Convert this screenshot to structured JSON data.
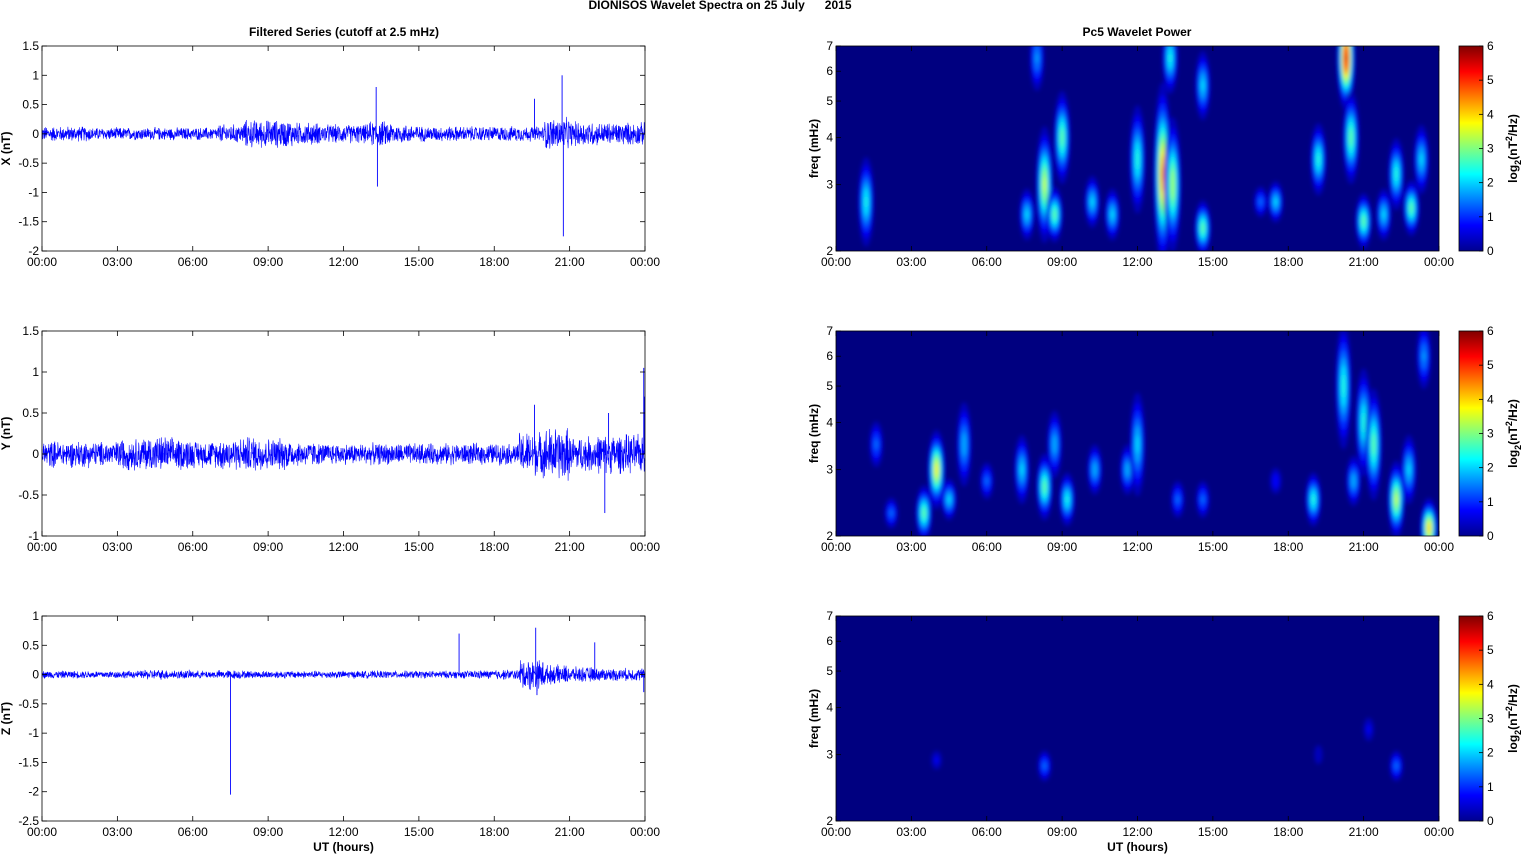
{
  "chart_data": {
    "title": "DIONISOS Wavelet Spectra on 25 July      2015",
    "left_title": "Filtered Series (cutoff at 2.5 mHz)",
    "right_title": "Pc5 Wavelet Power",
    "xlabel": "UT (hours)",
    "x_ticks": [
      "00:00",
      "03:00",
      "06:00",
      "09:00",
      "12:00",
      "15:00",
      "18:00",
      "21:00",
      "00:00"
    ],
    "x_range_hours": [
      0,
      24
    ],
    "freq_label": "freq (mHz)",
    "freq_ticks": [
      2,
      3,
      4,
      5,
      6,
      7
    ],
    "freq_range": [
      2,
      7
    ],
    "colorbar": {
      "label": "log2(nT^2/Hz)",
      "label_main": "log",
      "label_sub": "2",
      "label_rest": "(nT",
      "label_sup": "2",
      "label_end": "/Hz)",
      "ticks": [
        0,
        1,
        2,
        3,
        4,
        5,
        6
      ],
      "range": [
        0,
        6
      ],
      "colormap": "jet"
    },
    "series_color": "#0000ff",
    "series": [
      {
        "name": "X",
        "ylabel": "X (nT)",
        "ylim": [
          -2,
          1.5
        ],
        "yticks": [
          -2,
          -1.5,
          -1,
          -0.5,
          0,
          0.5,
          1,
          1.5
        ],
        "noise_envelope": [
          0.12,
          0.12,
          0.1,
          0.1,
          0.1,
          0.1,
          0.1,
          0.15,
          0.22,
          0.22,
          0.18,
          0.15,
          0.15,
          0.2,
          0.15,
          0.12,
          0.12,
          0.12,
          0.12,
          0.12,
          0.25,
          0.2,
          0.18,
          0.18
        ],
        "spikes": [
          [
            13.3,
            0.8
          ],
          [
            13.35,
            -0.9
          ],
          [
            19.6,
            0.6
          ],
          [
            20.7,
            1.0
          ],
          [
            20.75,
            -1.75
          ]
        ]
      },
      {
        "name": "Y",
        "ylabel": "Y (nT)",
        "ylim": [
          -1,
          1.5
        ],
        "yticks": [
          -1,
          -0.5,
          0,
          0.5,
          1,
          1.5
        ],
        "noise_envelope": [
          0.15,
          0.15,
          0.14,
          0.18,
          0.2,
          0.18,
          0.15,
          0.18,
          0.2,
          0.18,
          0.14,
          0.12,
          0.12,
          0.12,
          0.12,
          0.12,
          0.12,
          0.12,
          0.12,
          0.25,
          0.3,
          0.2,
          0.22,
          0.22
        ],
        "spikes": [
          [
            19.6,
            0.6
          ],
          [
            22.4,
            -0.72
          ],
          [
            22.55,
            0.5
          ],
          [
            23.95,
            1.05
          ],
          [
            23.98,
            0.7
          ]
        ]
      },
      {
        "name": "Z",
        "ylabel": "Z (nT)",
        "ylim": [
          -2.5,
          1
        ],
        "yticks": [
          -2.5,
          -2,
          -1.5,
          -1,
          -0.5,
          0,
          0.5,
          1
        ],
        "noise_envelope": [
          0.06,
          0.06,
          0.06,
          0.06,
          0.08,
          0.07,
          0.06,
          0.07,
          0.06,
          0.06,
          0.06,
          0.06,
          0.06,
          0.06,
          0.06,
          0.06,
          0.06,
          0.07,
          0.08,
          0.25,
          0.15,
          0.12,
          0.1,
          0.1
        ],
        "spikes": [
          [
            7.5,
            -2.05
          ],
          [
            16.6,
            0.7
          ],
          [
            19.65,
            0.8
          ],
          [
            19.7,
            -0.35
          ],
          [
            22.0,
            0.55
          ],
          [
            23.95,
            -0.3
          ]
        ]
      }
    ],
    "wavelet_power": [
      {
        "component": "X",
        "blobs": [
          [
            1.2,
            2.7,
            2.5,
            0.25
          ],
          [
            7.6,
            2.5,
            2.2,
            0.15
          ],
          [
            8.3,
            3.0,
            3.6,
            0.3
          ],
          [
            8.7,
            2.5,
            3.0,
            0.15
          ],
          [
            9.0,
            4.0,
            3.0,
            0.25
          ],
          [
            10.2,
            2.7,
            2.2,
            0.15
          ],
          [
            11.0,
            2.5,
            2.2,
            0.15
          ],
          [
            12.0,
            3.5,
            2.6,
            0.3
          ],
          [
            13.0,
            3.2,
            4.6,
            0.45
          ],
          [
            13.4,
            3.0,
            3.5,
            0.35
          ],
          [
            14.6,
            2.3,
            3.0,
            0.15
          ],
          [
            14.6,
            5.5,
            2.2,
            0.2
          ],
          [
            16.9,
            2.7,
            1.5,
            0.1
          ],
          [
            17.5,
            2.7,
            2.2,
            0.12
          ],
          [
            19.2,
            3.5,
            2.6,
            0.2
          ],
          [
            20.3,
            6.5,
            5.6,
            0.25
          ],
          [
            20.5,
            4.0,
            3.0,
            0.25
          ],
          [
            21.0,
            2.4,
            3.0,
            0.15
          ],
          [
            21.8,
            2.5,
            2.2,
            0.15
          ],
          [
            22.3,
            3.2,
            2.6,
            0.2
          ],
          [
            22.9,
            2.6,
            3.0,
            0.15
          ],
          [
            23.3,
            3.5,
            2.2,
            0.2
          ],
          [
            8.0,
            6.5,
            1.8,
            0.2
          ],
          [
            13.3,
            6.5,
            2.5,
            0.2
          ]
        ]
      },
      {
        "component": "Y",
        "blobs": [
          [
            1.6,
            3.5,
            1.5,
            0.15
          ],
          [
            2.2,
            2.3,
            1.5,
            0.1
          ],
          [
            3.5,
            2.3,
            3.0,
            0.15
          ],
          [
            4.0,
            3.0,
            4.0,
            0.2
          ],
          [
            4.5,
            2.5,
            2.2,
            0.12
          ],
          [
            5.1,
            3.5,
            2.0,
            0.25
          ],
          [
            6.0,
            2.8,
            1.5,
            0.12
          ],
          [
            7.4,
            3.0,
            2.2,
            0.2
          ],
          [
            8.3,
            2.7,
            3.0,
            0.18
          ],
          [
            8.7,
            3.5,
            2.0,
            0.2
          ],
          [
            9.2,
            2.5,
            2.5,
            0.15
          ],
          [
            10.3,
            3.0,
            2.0,
            0.15
          ],
          [
            11.6,
            3.0,
            2.0,
            0.15
          ],
          [
            12.0,
            3.5,
            2.2,
            0.3
          ],
          [
            13.6,
            2.5,
            1.5,
            0.12
          ],
          [
            14.6,
            2.5,
            1.5,
            0.12
          ],
          [
            17.5,
            2.8,
            1.0,
            0.1
          ],
          [
            19.0,
            2.5,
            2.6,
            0.15
          ],
          [
            20.2,
            5.0,
            2.6,
            0.35
          ],
          [
            20.6,
            2.8,
            2.0,
            0.15
          ],
          [
            21.0,
            4.0,
            2.6,
            0.3
          ],
          [
            21.4,
            3.5,
            3.0,
            0.3
          ],
          [
            22.3,
            2.5,
            3.6,
            0.2
          ],
          [
            22.8,
            3.0,
            2.2,
            0.2
          ],
          [
            23.6,
            2.1,
            4.2,
            0.15
          ],
          [
            23.4,
            6.0,
            1.8,
            0.2
          ]
        ]
      },
      {
        "component": "Z",
        "blobs": [
          [
            4.0,
            2.9,
            0.8,
            0.08
          ],
          [
            8.3,
            2.8,
            1.5,
            0.1
          ],
          [
            19.2,
            3.0,
            0.6,
            0.1
          ],
          [
            21.2,
            3.5,
            0.8,
            0.1
          ],
          [
            22.3,
            2.8,
            1.5,
            0.1
          ]
        ]
      }
    ]
  }
}
